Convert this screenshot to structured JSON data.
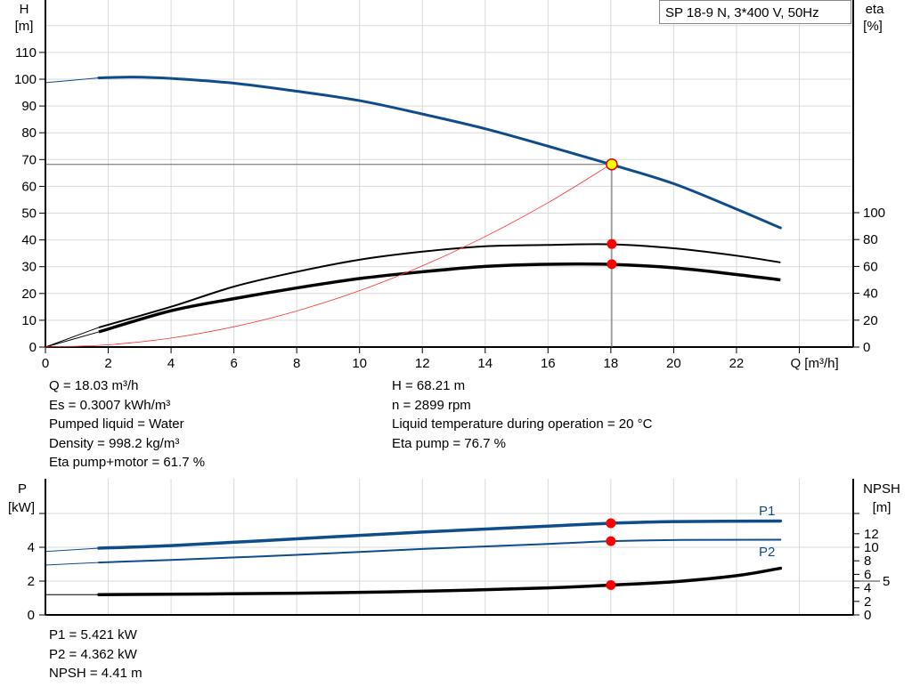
{
  "chart_data": [
    {
      "type": "line",
      "title": "SP 18-9 N, 3*400 V, 50Hz",
      "xlabel": "Q [m³/h]",
      "ylabel_left": "H",
      "ylabel_left_unit": "[m]",
      "ylabel_right": "eta",
      "ylabel_right_unit": "[%]",
      "xlim": [
        0,
        25.6
      ],
      "ylim_left": [
        0,
        129.5
      ],
      "ylim_right": [
        0,
        258
      ],
      "x_ticks": [
        0,
        2,
        4,
        6,
        8,
        10,
        12,
        14,
        16,
        18,
        20,
        22
      ],
      "y_ticks_left": [
        0,
        10,
        20,
        30,
        40,
        50,
        60,
        70,
        80,
        90,
        100,
        110
      ],
      "y_ticks_right": [
        0,
        20,
        40,
        60,
        80,
        100
      ],
      "grid": true,
      "series": [
        {
          "key": "H",
          "axis": "left",
          "color": "#0f4c8a",
          "x": [
            0,
            1.7,
            2.8,
            4,
            6,
            8,
            10,
            12,
            14,
            16,
            18,
            20,
            22,
            23.4
          ],
          "y": [
            98.7,
            100.5,
            100.8,
            100.3,
            98.5,
            95.5,
            92,
            87,
            81.5,
            75,
            68.2,
            61,
            51.5,
            44.5
          ]
        },
        {
          "key": "eta_pump",
          "axis": "right",
          "color": "#000000",
          "x": [
            0,
            1.7,
            4,
            6,
            8,
            10,
            12,
            14,
            16,
            18,
            20,
            22,
            23.4
          ],
          "y": [
            0,
            14.6,
            30,
            45,
            56,
            65,
            71,
            75,
            76,
            76.5,
            73.5,
            68,
            63
          ]
        },
        {
          "key": "eta_pump_motor",
          "axis": "right",
          "color": "#000000",
          "x": [
            0,
            1.7,
            4,
            6,
            8,
            10,
            12,
            14,
            16,
            18,
            20,
            22,
            23.4
          ],
          "y": [
            0,
            11.3,
            27,
            36,
            44,
            51,
            56,
            60,
            61.6,
            61.5,
            59,
            54,
            50
          ]
        },
        {
          "key": "system_curve",
          "axis": "left",
          "color": "#ff3030",
          "x": [
            0,
            2,
            4,
            6,
            8,
            10,
            12,
            14,
            16,
            18
          ],
          "y": [
            0,
            0.84,
            3.37,
            7.58,
            13.47,
            21.05,
            30.32,
            41.26,
            53.89,
            68.21
          ]
        }
      ],
      "duty_point": {
        "Q": 18.03,
        "H": 68.21,
        "eta_pump": 76.7,
        "eta_pump_motor": 61.7
      }
    },
    {
      "type": "line",
      "ylabel_left": "P",
      "ylabel_left_unit": "[kW]",
      "ylabel_right": "NPSH",
      "ylabel_right_unit": "[m]",
      "xlim": [
        0,
        25.6
      ],
      "ylim_left": [
        0,
        8
      ],
      "ylim_right": [
        0,
        20
      ],
      "y_ticks_left": [
        0,
        2,
        4
      ],
      "y_ticks_right": [
        0,
        2,
        4,
        5,
        6,
        8,
        10,
        12
      ],
      "grid": true,
      "series": [
        {
          "name": "P1",
          "axis": "left",
          "color": "#0f4c8a",
          "x": [
            0,
            1.7,
            4,
            8,
            12,
            16,
            18,
            20,
            23.4
          ],
          "y": [
            3.75,
            3.95,
            4.1,
            4.5,
            4.9,
            5.25,
            5.42,
            5.52,
            5.55
          ]
        },
        {
          "name": "P2",
          "axis": "left",
          "color": "#0f4c8a",
          "x": [
            0,
            1.7,
            4,
            8,
            12,
            16,
            18,
            20,
            23.4
          ],
          "y": [
            2.95,
            3.1,
            3.25,
            3.55,
            3.9,
            4.2,
            4.36,
            4.43,
            4.45
          ]
        },
        {
          "key": "NPSH",
          "axis": "right",
          "color": "#000000",
          "x": [
            0,
            1.7,
            8,
            12,
            16,
            18,
            20,
            22,
            23.4
          ],
          "y": [
            3.0,
            3.0,
            3.2,
            3.5,
            4.0,
            4.41,
            4.9,
            5.8,
            6.9
          ]
        }
      ]
    }
  ],
  "info_top_left": [
    "Q = 18.03 m³/h",
    "Es = 0.3007 kWh/m³",
    "Pumped liquid = Water",
    "Density = 998.2 kg/m³",
    "Eta pump+motor = 61.7 %"
  ],
  "info_top_right": [
    "H = 68.21 m",
    "n = 2899 rpm",
    "Liquid temperature during operation = 20 °C",
    "Eta pump = 76.7 %"
  ],
  "info_bottom": [
    "P1 = 5.421 kW",
    "P2 = 4.362 kW",
    "NPSH = 4.41 m"
  ],
  "colors": {
    "head": "#0f4c8a",
    "power": "#0f4c8a",
    "eta": "#000000",
    "duty_point": "#ff0000",
    "grid": "#d9d9d9"
  }
}
